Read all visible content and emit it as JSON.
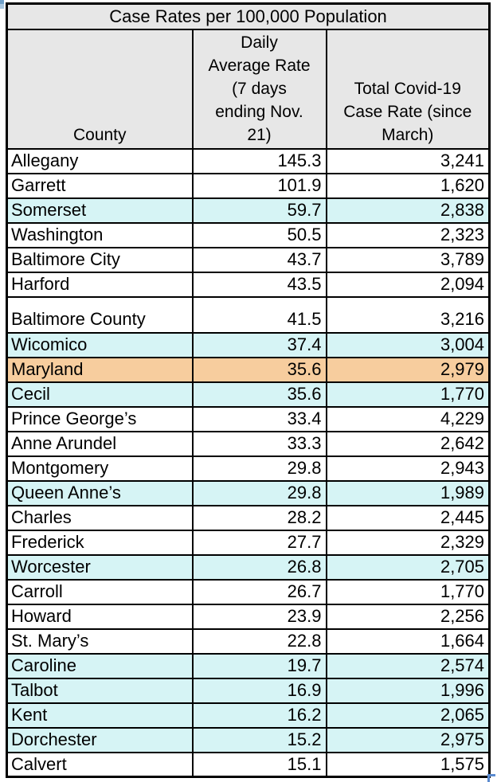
{
  "chart_data": {
    "type": "table",
    "title": "Case Rates per 100,000 Population",
    "columns": [
      "County",
      "Daily\nAverage Rate\n(7 days\nending Nov.\n21)",
      "Total Covid-19\nCase Rate (since\nMarch)"
    ],
    "rows": [
      {
        "county": "Allegany",
        "daily_rate": "145.3",
        "total_rate": "3,241",
        "highlight": "white"
      },
      {
        "county": "Garrett",
        "daily_rate": "101.9",
        "total_rate": "1,620",
        "highlight": "white"
      },
      {
        "county": "Somerset",
        "daily_rate": "59.7",
        "total_rate": "2,838",
        "highlight": "cyan"
      },
      {
        "county": "Washington",
        "daily_rate": "50.5",
        "total_rate": "2,323",
        "highlight": "white"
      },
      {
        "county": "Baltimore City",
        "daily_rate": "43.7",
        "total_rate": "3,789",
        "highlight": "white"
      },
      {
        "county": "Harford",
        "daily_rate": "43.5",
        "total_rate": "2,094",
        "highlight": "white"
      },
      {
        "county": "Baltimore County",
        "daily_rate": "41.5",
        "total_rate": "3,216",
        "highlight": "white",
        "tall": true
      },
      {
        "county": "Wicomico",
        "daily_rate": "37.4",
        "total_rate": "3,004",
        "highlight": "cyan"
      },
      {
        "county": "Maryland",
        "daily_rate": "35.6",
        "total_rate": "2,979",
        "highlight": "orange"
      },
      {
        "county": "Cecil",
        "daily_rate": "35.6",
        "total_rate": "1,770",
        "highlight": "cyan"
      },
      {
        "county": "Prince George’s",
        "daily_rate": "33.4",
        "total_rate": "4,229",
        "highlight": "white"
      },
      {
        "county": "Anne Arundel",
        "daily_rate": "33.3",
        "total_rate": "2,642",
        "highlight": "white"
      },
      {
        "county": "Montgomery",
        "daily_rate": "29.8",
        "total_rate": "2,943",
        "highlight": "white"
      },
      {
        "county": "Queen Anne’s",
        "daily_rate": "29.8",
        "total_rate": "1,989",
        "highlight": "cyan"
      },
      {
        "county": "Charles",
        "daily_rate": "28.2",
        "total_rate": "2,445",
        "highlight": "white"
      },
      {
        "county": "Frederick",
        "daily_rate": "27.7",
        "total_rate": "2,329",
        "highlight": "white"
      },
      {
        "county": "Worcester",
        "daily_rate": "26.8",
        "total_rate": "2,705",
        "highlight": "cyan"
      },
      {
        "county": "Carroll",
        "daily_rate": "26.7",
        "total_rate": "1,770",
        "highlight": "white"
      },
      {
        "county": "Howard",
        "daily_rate": "23.9",
        "total_rate": "2,256",
        "highlight": "white"
      },
      {
        "county": "St. Mary’s",
        "daily_rate": "22.8",
        "total_rate": "1,664",
        "highlight": "white"
      },
      {
        "county": "Caroline",
        "daily_rate": "19.7",
        "total_rate": "2,574",
        "highlight": "cyan"
      },
      {
        "county": "Talbot",
        "daily_rate": "16.9",
        "total_rate": "1,996",
        "highlight": "cyan"
      },
      {
        "county": "Kent",
        "daily_rate": "16.2",
        "total_rate": "2,065",
        "highlight": "cyan"
      },
      {
        "county": "Dorchester",
        "daily_rate": "15.2",
        "total_rate": "2,975",
        "highlight": "cyan"
      },
      {
        "county": "Calvert",
        "daily_rate": "15.1",
        "total_rate": "1,575",
        "highlight": "white"
      }
    ],
    "colors": {
      "header_fill": "#e7e7e7",
      "cyan_highlight": "#d6f4f5",
      "orange_highlight": "#f7cd9e",
      "border": "#000000"
    },
    "layout_hints": {
      "grid": "on",
      "numeric_alignment": "right",
      "county_alignment": "left"
    }
  }
}
